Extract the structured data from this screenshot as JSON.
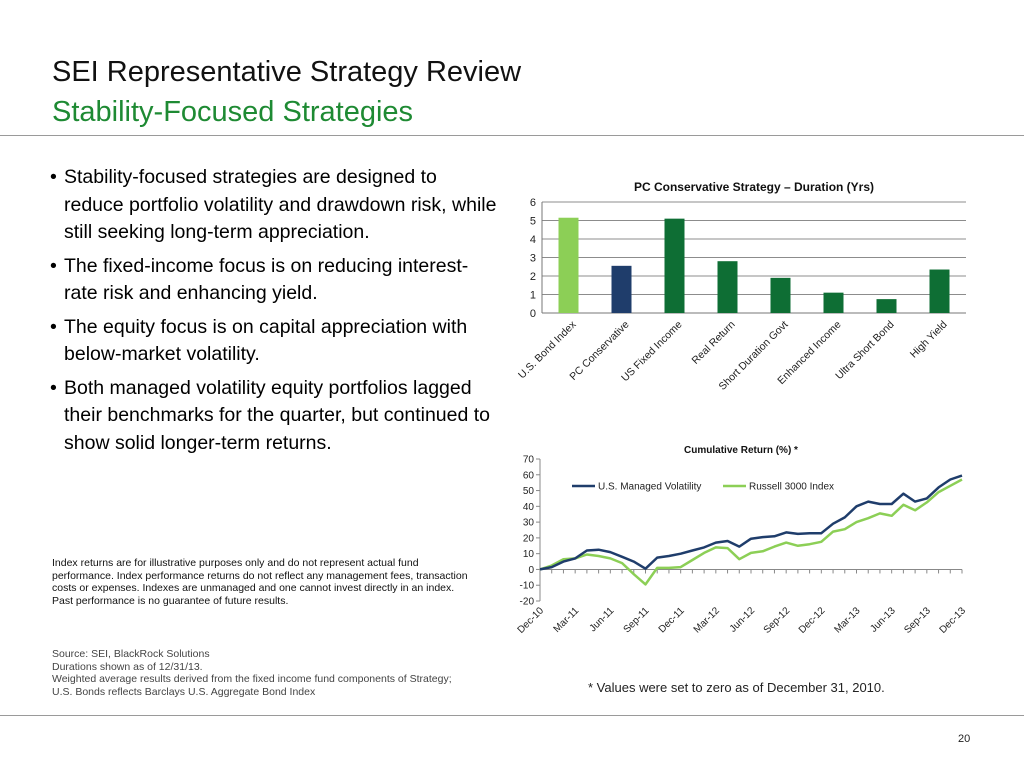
{
  "header": {
    "title": "SEI Representative Strategy Review",
    "subtitle": "Stability-Focused Strategies"
  },
  "bullets": [
    "Stability-focused strategies are designed to reduce portfolio volatility and drawdown risk, while still seeking long-term appreciation.",
    "The fixed-income focus is on reducing interest-rate risk and enhancing yield.",
    "The equity focus is on capital appreciation with below-market volatility.",
    "Both managed volatility equity portfolios lagged their benchmarks for the quarter, but continued to show solid longer-term returns."
  ],
  "disclaimer": "Index returns are for illustrative purposes only and do not represent actual fund performance. Index performance returns do not reflect any management fees, transaction costs or expenses.  Indexes are unmanaged and one cannot invest directly in an index.  Past performance is no guarantee of future results.",
  "source_lines": [
    "Source: SEI, BlackRock Solutions",
    "Durations shown as of 12/31/13.",
    "Weighted average results derived from the fixed income fund components of Strategy;",
    "U.S. Bonds reflects Barclays U.S. Aggregate Bond Index"
  ],
  "footnote": "* Values were set to zero as of December 31, 2010.",
  "page_number": "20",
  "colors": {
    "title_green": "#1e8a33",
    "bar_light_green": "#8ccf56",
    "bar_navy": "#1f3d6b",
    "bar_dark_green": "#0e6e34",
    "line_navy": "#1f3d6b",
    "line_green": "#8ccf56"
  },
  "chart_data": [
    {
      "type": "bar",
      "title": "PC Conservative Strategy – Duration (Yrs)",
      "categories": [
        "U.S. Bond Index",
        "PC Conservative",
        "US Fixed Income",
        "Real Return",
        "Short Duration Govt",
        "Enhanced Income",
        "Ultra Short Bond",
        "High Yield"
      ],
      "values": [
        5.15,
        2.55,
        5.1,
        2.8,
        1.9,
        1.1,
        0.75,
        2.35
      ],
      "bar_colors": [
        "#8ccf56",
        "#1f3d6b",
        "#0e6e34",
        "#0e6e34",
        "#0e6e34",
        "#0e6e34",
        "#0e6e34",
        "#0e6e34"
      ],
      "ylim": [
        0,
        6
      ],
      "yticks": [
        0,
        1,
        2,
        3,
        4,
        5,
        6
      ],
      "grid": true
    },
    {
      "type": "line",
      "title": "Cumulative Return (%)  *",
      "x": [
        "Dec-10",
        "Jan-11",
        "Feb-11",
        "Mar-11",
        "Apr-11",
        "May-11",
        "Jun-11",
        "Jul-11",
        "Aug-11",
        "Sep-11",
        "Oct-11",
        "Nov-11",
        "Dec-11",
        "Jan-12",
        "Feb-12",
        "Mar-12",
        "Apr-12",
        "May-12",
        "Jun-12",
        "Jul-12",
        "Aug-12",
        "Sep-12",
        "Oct-12",
        "Nov-12",
        "Dec-12",
        "Jan-13",
        "Feb-13",
        "Mar-13",
        "Apr-13",
        "May-13",
        "Jun-13",
        "Jul-13",
        "Aug-13",
        "Sep-13",
        "Oct-13",
        "Nov-13",
        "Dec-13"
      ],
      "xticks": [
        "Dec-10",
        "Mar-11",
        "Jun-11",
        "Sep-11",
        "Dec-11",
        "Mar-12",
        "Jun-12",
        "Sep-12",
        "Dec-12",
        "Mar-13",
        "Jun-13",
        "Sep-13",
        "Dec-13"
      ],
      "series": [
        {
          "name": "U.S. Managed Volatility",
          "color": "#1f3d6b",
          "values": [
            0,
            1.5,
            5,
            7,
            12,
            12.5,
            11,
            8,
            5,
            0.5,
            7.5,
            8.5,
            10,
            12,
            14,
            17,
            18,
            14.5,
            19.5,
            20.5,
            21,
            23.5,
            22.5,
            23,
            23,
            29,
            33,
            40,
            43,
            41.5,
            41.5,
            48,
            43,
            45,
            52,
            57,
            59.5
          ]
        },
        {
          "name": "Russell 3000 Index",
          "color": "#8ccf56",
          "values": [
            0,
            2.5,
            6.5,
            7,
            9.5,
            8.5,
            7,
            4,
            -3,
            -9.5,
            1,
            1,
            1.5,
            6,
            10.5,
            14,
            13.5,
            6.5,
            10.5,
            11.5,
            14.5,
            17,
            15,
            16,
            17.5,
            24,
            25.5,
            30,
            32.5,
            35.5,
            34,
            41,
            37.5,
            42.5,
            49,
            53,
            57
          ]
        }
      ],
      "ylim": [
        -20,
        70
      ],
      "yticks": [
        -20,
        -10,
        0,
        10,
        20,
        30,
        40,
        50,
        60,
        70
      ],
      "legend": "top-center",
      "grid": false
    }
  ]
}
